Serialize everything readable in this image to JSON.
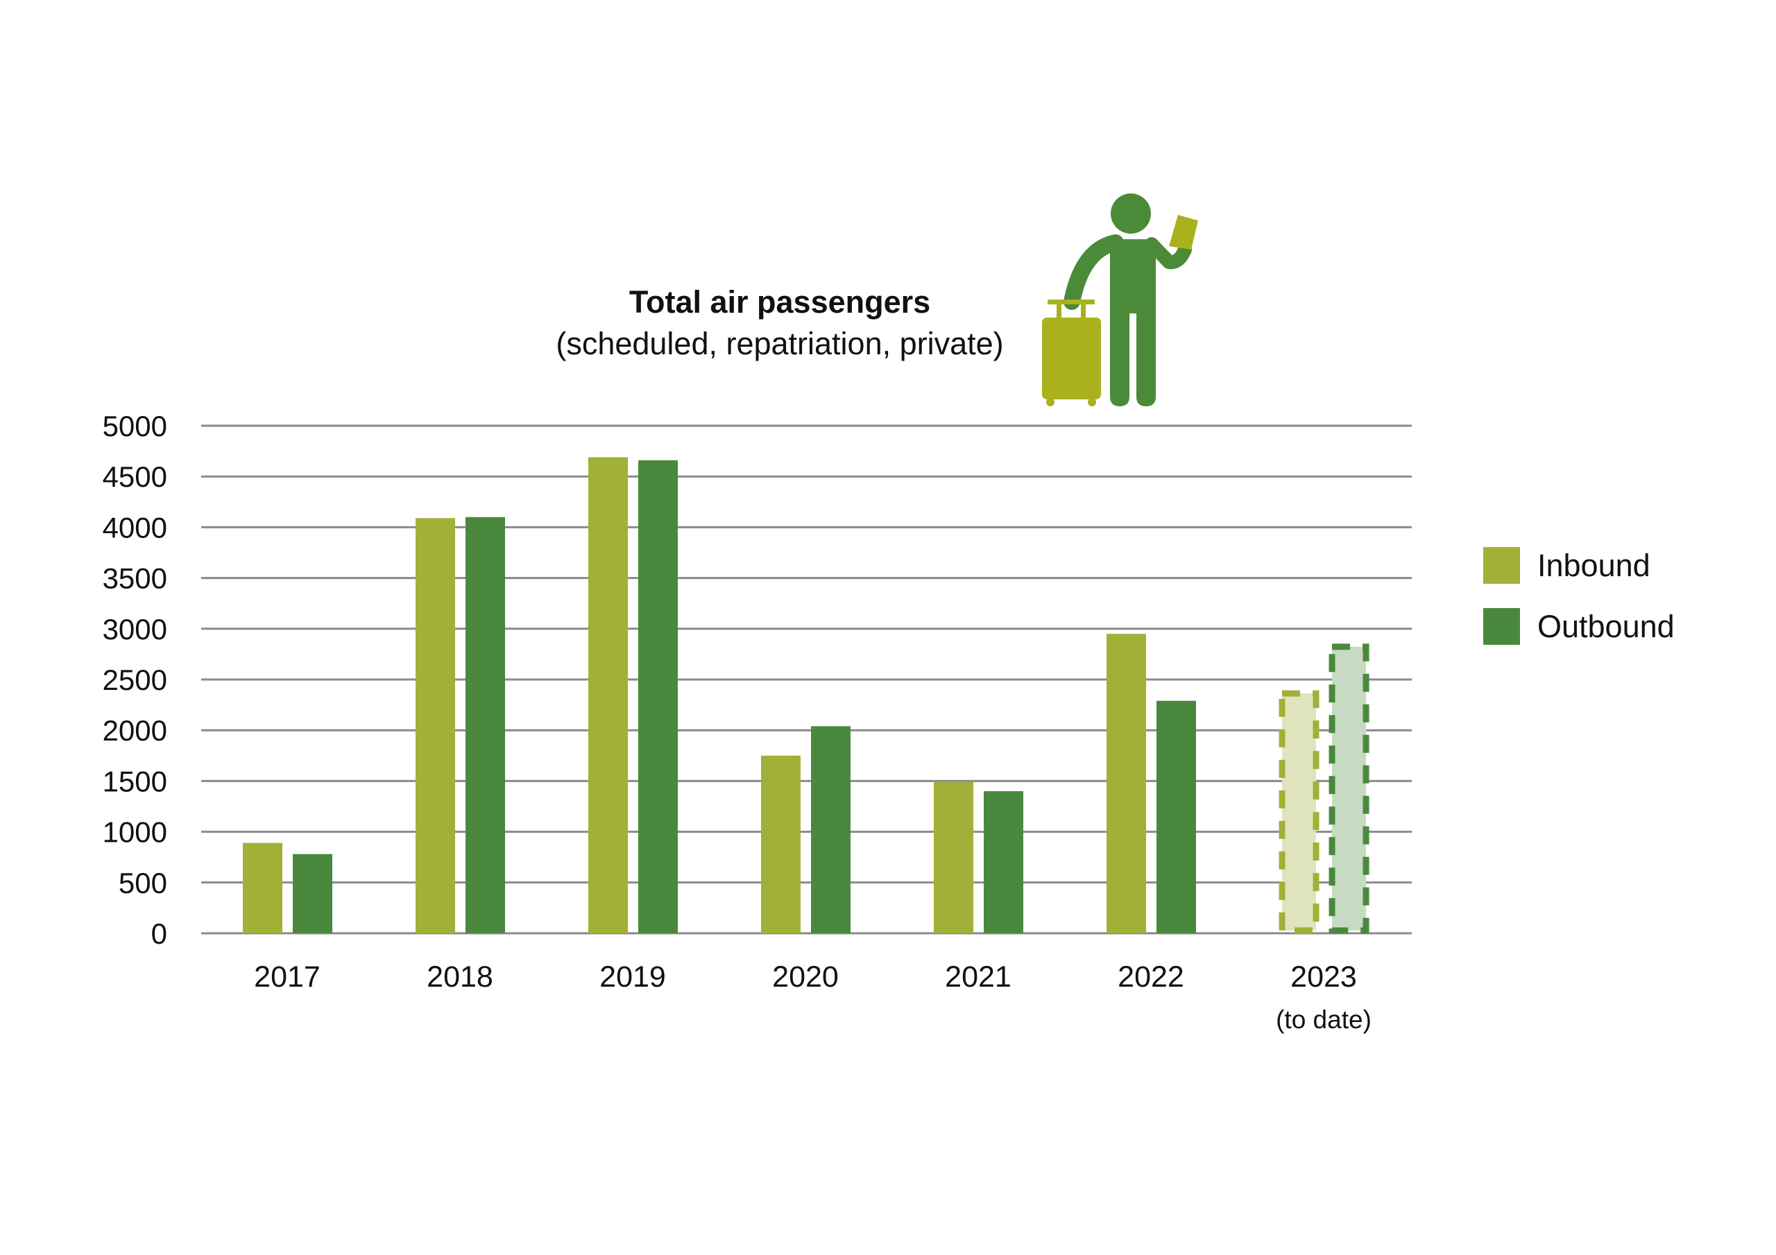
{
  "chart_data": {
    "type": "bar",
    "title": "Total air passengers",
    "subtitle": "(scheduled, repatriation, private)",
    "categories": [
      "2017",
      "2018",
      "2019",
      "2020",
      "2021",
      "2022",
      "2023"
    ],
    "category_notes": {
      "2023": "(to date)"
    },
    "series": [
      {
        "name": "Inbound",
        "values": [
          890,
          4090,
          4690,
          1750,
          1490,
          2950,
          2390
        ],
        "color": "#a3b037",
        "fill_partial": "#dfe4bd"
      },
      {
        "name": "Outbound",
        "values": [
          780,
          4100,
          4660,
          2040,
          1400,
          2290,
          2850
        ],
        "color": "#4a893d",
        "fill_partial": "#c7dac2"
      }
    ],
    "partial_categories": [
      "2023"
    ],
    "yticks": [
      0,
      500,
      1000,
      1500,
      2000,
      2500,
      3000,
      3500,
      4000,
      4500,
      5000
    ],
    "ylim": [
      0,
      5000
    ],
    "xlabel": "",
    "ylabel": "",
    "grid": true,
    "legend_position": "right"
  },
  "icons": {
    "illustration": "traveler-with-suitcase-icon",
    "person_color": "#4a8a38",
    "suitcase_color": "#a9b21c"
  }
}
